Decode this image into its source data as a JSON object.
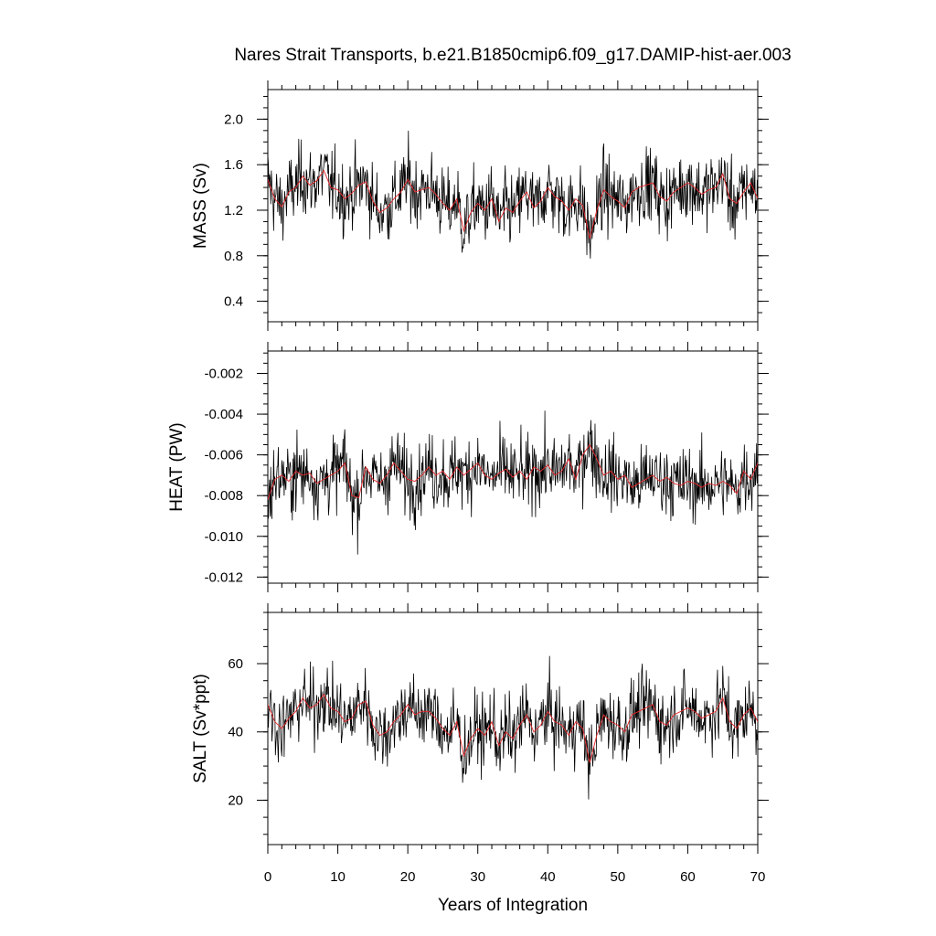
{
  "title": "Nares Strait Transports, b.e21.B1850cmip6.f09_g17.DAMIP-hist-aer.003",
  "xlabel": "Years of Integration",
  "colors": {
    "monthly": "#000000",
    "annual": "#e8262a"
  },
  "chart_data": [
    {
      "type": "line",
      "ylabel": "MASS (Sv)",
      "xlim": [
        0,
        70
      ],
      "ylim": [
        0.22,
        2.26
      ],
      "xticks": [
        "0",
        "10",
        "20",
        "30",
        "40",
        "50",
        "60",
        "70"
      ],
      "yticks": [
        "0.4",
        "0.8",
        "1.2",
        "1.6",
        "2.0"
      ],
      "series": [
        {
          "x": [
            0,
            1,
            2,
            3,
            4,
            5,
            6,
            7,
            8,
            9,
            10,
            11,
            12,
            13,
            14,
            15,
            16,
            17,
            18,
            19,
            20,
            21,
            22,
            23,
            24,
            25,
            26,
            27,
            28,
            29,
            30,
            31,
            32,
            33,
            34,
            35,
            36,
            37,
            38,
            39,
            40,
            41,
            42,
            43,
            44,
            45,
            46,
            47,
            48,
            49,
            50,
            51,
            52,
            53,
            54,
            55,
            56,
            57,
            58,
            59,
            60,
            61,
            62,
            63,
            64,
            65,
            66,
            67,
            68,
            69,
            70
          ],
          "values": [
            1.47,
            1.3,
            1.23,
            1.36,
            1.4,
            1.5,
            1.42,
            1.46,
            1.55,
            1.4,
            1.38,
            1.3,
            1.35,
            1.42,
            1.45,
            1.28,
            1.18,
            1.22,
            1.3,
            1.36,
            1.47,
            1.36,
            1.38,
            1.4,
            1.34,
            1.26,
            1.2,
            1.3,
            1.02,
            1.18,
            1.26,
            1.2,
            1.3,
            1.1,
            1.22,
            1.18,
            1.28,
            1.36,
            1.22,
            1.28,
            1.4,
            1.32,
            1.28,
            1.2,
            1.3,
            1.24,
            0.95,
            1.2,
            1.38,
            1.32,
            1.28,
            1.22,
            1.36,
            1.4,
            1.42,
            1.44,
            1.32,
            1.28,
            1.36,
            1.4,
            1.44,
            1.4,
            1.34,
            1.38,
            1.4,
            1.52,
            1.3,
            1.26,
            1.36,
            1.44,
            1.3
          ]
        }
      ],
      "monthly_range": [
        0.26,
        2.25
      ]
    },
    {
      "type": "line",
      "ylabel": "HEAT (PW)",
      "xlim": [
        0,
        70
      ],
      "ylim": [
        -0.0123,
        -0.0009
      ],
      "xticks": [
        "0",
        "10",
        "20",
        "30",
        "40",
        "50",
        "60",
        "70"
      ],
      "yticks": [
        "-0.002",
        "-0.004",
        "-0.006",
        "-0.008",
        "-0.010",
        "-0.012"
      ],
      "series": [
        {
          "x": [
            0,
            1,
            2,
            3,
            4,
            5,
            6,
            7,
            8,
            9,
            10,
            11,
            12,
            13,
            14,
            15,
            16,
            17,
            18,
            19,
            20,
            21,
            22,
            23,
            24,
            25,
            26,
            27,
            28,
            29,
            30,
            31,
            32,
            33,
            34,
            35,
            36,
            37,
            38,
            39,
            40,
            41,
            42,
            43,
            44,
            45,
            46,
            47,
            48,
            49,
            50,
            51,
            52,
            53,
            54,
            55,
            56,
            57,
            58,
            59,
            60,
            61,
            62,
            63,
            64,
            65,
            66,
            67,
            68,
            69,
            70
          ],
          "values": [
            -0.0082,
            -0.0072,
            -0.007,
            -0.0073,
            -0.0068,
            -0.007,
            -0.0069,
            -0.0074,
            -0.0072,
            -0.007,
            -0.0068,
            -0.0064,
            -0.008,
            -0.0081,
            -0.0066,
            -0.0072,
            -0.0074,
            -0.007,
            -0.0064,
            -0.0068,
            -0.0072,
            -0.0073,
            -0.007,
            -0.0066,
            -0.007,
            -0.0068,
            -0.0072,
            -0.0066,
            -0.007,
            -0.0067,
            -0.0064,
            -0.007,
            -0.0072,
            -0.0069,
            -0.0067,
            -0.0071,
            -0.0068,
            -0.0072,
            -0.0066,
            -0.0068,
            -0.0065,
            -0.007,
            -0.0068,
            -0.0062,
            -0.0072,
            -0.006,
            -0.0055,
            -0.0062,
            -0.007,
            -0.0068,
            -0.0072,
            -0.007,
            -0.0076,
            -0.0074,
            -0.0072,
            -0.007,
            -0.0073,
            -0.0071,
            -0.0074,
            -0.0075,
            -0.0073,
            -0.0074,
            -0.0076,
            -0.0074,
            -0.0075,
            -0.0073,
            -0.0075,
            -0.0079,
            -0.0068,
            -0.0072,
            -0.0064
          ]
        }
      ],
      "monthly_range": [
        -0.0121,
        -0.0011
      ]
    },
    {
      "type": "line",
      "ylabel": "SALT (Sv*ppt)",
      "xlim": [
        0,
        70
      ],
      "ylim": [
        7,
        75
      ],
      "xticks": [
        "0",
        "10",
        "20",
        "30",
        "40",
        "50",
        "60",
        "70"
      ],
      "yticks": [
        "20",
        "40",
        "60"
      ],
      "series": [
        {
          "x": [
            0,
            1,
            2,
            3,
            4,
            5,
            6,
            7,
            8,
            9,
            10,
            11,
            12,
            13,
            14,
            15,
            16,
            17,
            18,
            19,
            20,
            21,
            22,
            23,
            24,
            25,
            26,
            27,
            28,
            29,
            30,
            31,
            32,
            33,
            34,
            35,
            36,
            37,
            38,
            39,
            40,
            41,
            42,
            43,
            44,
            45,
            46,
            47,
            48,
            49,
            50,
            51,
            52,
            53,
            54,
            55,
            56,
            57,
            58,
            59,
            60,
            61,
            62,
            63,
            64,
            65,
            66,
            67,
            68,
            69,
            70
          ],
          "values": [
            48,
            43,
            41,
            44,
            46,
            50,
            47,
            48,
            51,
            47,
            46,
            43,
            44,
            48,
            49,
            42,
            39,
            40,
            43,
            45,
            48,
            45,
            46,
            46,
            44,
            41,
            39,
            43,
            33,
            38,
            41,
            39,
            43,
            36,
            40,
            38,
            42,
            45,
            40,
            42,
            46,
            43,
            42,
            39,
            43,
            41,
            31,
            39,
            45,
            43,
            42,
            40,
            45,
            46,
            47,
            48,
            43,
            42,
            45,
            46,
            47,
            46,
            44,
            45,
            46,
            50,
            43,
            41,
            45,
            47,
            43
          ]
        }
      ],
      "monthly_range": [
        8.5,
        74.5
      ]
    }
  ]
}
